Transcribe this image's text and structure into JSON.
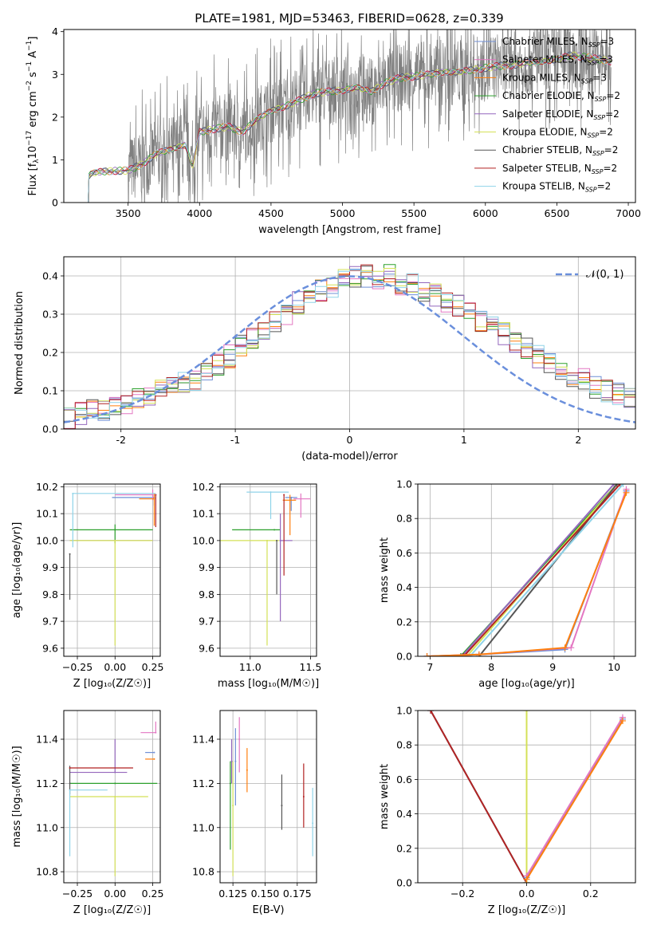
{
  "title": "PLATE=1981, MJD=53463, FIBERID=0628, z=0.339",
  "colors": {
    "Chabrier MILES": "#6f8fd6",
    "Salpeter MILES": "#e377c2",
    "Kroupa MILES": "#ff7f0e",
    "Chabrier ELODIE": "#2ca02c",
    "Salpeter ELODIE": "#9467bd",
    "Kroupa ELODIE": "#d4e157",
    "Chabrier STELIB": "#555555",
    "Salpeter STELIB": "#b22222",
    "Kroupa STELIB": "#8fd3e8",
    "data": "#808080",
    "normal": "#6a8fdc",
    "grid": "#b0b0b0"
  },
  "chart_data": [
    {
      "id": "spectrum",
      "type": "line",
      "title": "PLATE=1981, MJD=53463, FIBERID=0628, z=0.339",
      "xlabel": "wavelength [Angstrom, rest frame]",
      "ylabel_parts": [
        "Flux [f",
        "λ",
        "10",
        "−17",
        " erg cm",
        "−2",
        " s",
        "−1",
        " A",
        "−1",
        "]"
      ],
      "xlim": [
        3050,
        7050
      ],
      "ylim": [
        0,
        4.05
      ],
      "xticks": [
        3500,
        4000,
        4500,
        5000,
        5500,
        6000,
        6500,
        7000
      ],
      "yticks": [
        0,
        1,
        2,
        3,
        4
      ],
      "x_range_data": [
        3220,
        6880
      ],
      "model_continuum": [
        [
          3220,
          0.58
        ],
        [
          3240,
          0.68
        ],
        [
          3300,
          0.72
        ],
        [
          3400,
          0.74
        ],
        [
          3500,
          0.75
        ],
        [
          3600,
          0.9
        ],
        [
          3700,
          1.15
        ],
        [
          3800,
          1.25
        ],
        [
          3900,
          1.35
        ],
        [
          3950,
          0.85
        ],
        [
          4000,
          1.65
        ],
        [
          4100,
          1.72
        ],
        [
          4200,
          1.78
        ],
        [
          4300,
          1.65
        ],
        [
          4400,
          1.95
        ],
        [
          4500,
          2.15
        ],
        [
          4600,
          2.25
        ],
        [
          4700,
          2.4
        ],
        [
          4800,
          2.55
        ],
        [
          4900,
          2.6
        ],
        [
          5000,
          2.62
        ],
        [
          5100,
          2.7
        ],
        [
          5200,
          2.6
        ],
        [
          5300,
          2.8
        ],
        [
          5400,
          2.92
        ],
        [
          5500,
          2.95
        ],
        [
          5600,
          3.0
        ],
        [
          5700,
          3.05
        ],
        [
          5800,
          3.05
        ],
        [
          5900,
          3.1
        ],
        [
          6000,
          3.15
        ],
        [
          6100,
          3.2
        ],
        [
          6200,
          3.22
        ],
        [
          6300,
          3.28
        ],
        [
          6400,
          3.3
        ],
        [
          6500,
          3.35
        ],
        [
          6600,
          3.45
        ],
        [
          6700,
          3.4
        ],
        [
          6800,
          3.35
        ],
        [
          6880,
          3.3
        ]
      ],
      "legend": [
        {
          "label": "Chabrier MILES, N",
          "sub": "SSP",
          "count": "=3",
          "key": "Chabrier MILES"
        },
        {
          "label": "Salpeter MILES, N",
          "sub": "SSP",
          "count": "=3",
          "key": "Salpeter MILES"
        },
        {
          "label": "Kroupa MILES, N",
          "sub": "SSP",
          "count": "=3",
          "key": "Kroupa MILES"
        },
        {
          "label": "Chabrier ELODIE, N",
          "sub": "SSP",
          "count": "=2",
          "key": "Chabrier ELODIE"
        },
        {
          "label": "Salpeter ELODIE, N",
          "sub": "SSP",
          "count": "=2",
          "key": "Salpeter ELODIE"
        },
        {
          "label": "Kroupa ELODIE, N",
          "sub": "SSP",
          "count": "=2",
          "key": "Kroupa ELODIE"
        },
        {
          "label": "Chabrier STELIB, N",
          "sub": "SSP",
          "count": "=2",
          "key": "Chabrier STELIB"
        },
        {
          "label": "Salpeter STELIB, N",
          "sub": "SSP",
          "count": "=2",
          "key": "Salpeter STELIB"
        },
        {
          "label": "Kroupa STELIB, N",
          "sub": "SSP",
          "count": "=2",
          "key": "Kroupa STELIB"
        }
      ]
    },
    {
      "id": "residuals",
      "type": "line",
      "xlabel": "(data-model)/error",
      "ylabel": "Normed distribution",
      "xlim": [
        -2.5,
        2.5
      ],
      "ylim": [
        0,
        0.45
      ],
      "xticks": [
        -2,
        -1,
        0,
        1,
        2
      ],
      "yticks": [
        0.0,
        0.1,
        0.2,
        0.3,
        0.4
      ],
      "bin_width": 0.1,
      "base_hist": [
        0.03,
        0.04,
        0.05,
        0.05,
        0.06,
        0.07,
        0.08,
        0.08,
        0.1,
        0.11,
        0.12,
        0.13,
        0.15,
        0.17,
        0.19,
        0.22,
        0.24,
        0.26,
        0.28,
        0.3,
        0.33,
        0.34,
        0.36,
        0.37,
        0.39,
        0.4,
        0.4,
        0.39,
        0.4,
        0.37,
        0.38,
        0.36,
        0.35,
        0.33,
        0.32,
        0.3,
        0.28,
        0.27,
        0.25,
        0.23,
        0.21,
        0.19,
        0.17,
        0.15,
        0.14,
        0.13,
        0.11,
        0.1,
        0.09,
        0.08,
        0.07,
        0.06,
        0.05
      ],
      "normal_label": "𝒩(0, 1)",
      "series_keys": [
        "Chabrier MILES",
        "Salpeter MILES",
        "Kroupa MILES",
        "Chabrier ELODIE",
        "Salpeter ELODIE",
        "Kroupa ELODIE",
        "Chabrier STELIB",
        "Salpeter STELIB",
        "Kroupa STELIB"
      ]
    },
    {
      "id": "age_vs_Z",
      "type": "scatter",
      "xlabel": "Z [log₁₀(Z/Z☉)]",
      "ylabel": "age  [log₁₀(age/yr)]",
      "xlim": [
        -0.34,
        0.3
      ],
      "ylim": [
        9.57,
        10.21
      ],
      "xticks": [
        -0.25,
        0.0,
        0.25
      ],
      "xticklabels": [
        "−0.25",
        "0.00",
        "0.25"
      ],
      "yticks": [
        9.6,
        9.7,
        9.8,
        9.9,
        10.0,
        10.1,
        10.2
      ],
      "points": [
        {
          "key": "Chabrier MILES",
          "x": 0.26,
          "y": 10.16,
          "xerr": [
            0.28,
            0.0
          ],
          "yerr": [
            0.03,
            0.01
          ]
        },
        {
          "key": "Salpeter MILES",
          "x": 0.25,
          "y": 10.17,
          "xerr": [
            0.25,
            0.0
          ],
          "yerr": [
            0.02,
            0.02
          ]
        },
        {
          "key": "Kroupa MILES",
          "x": 0.26,
          "y": 10.155,
          "xerr": [
            0.1,
            0.0
          ],
          "yerr": [
            0.1,
            0.02
          ]
        },
        {
          "key": "Chabrier ELODIE",
          "x": 0.0,
          "y": 10.04,
          "xerr": [
            0.3,
            0.25
          ],
          "yerr": [
            0.05,
            0.02
          ]
        },
        {
          "key": "Salpeter ELODIE",
          "x": 0.0,
          "y": 10.0,
          "xerr": [
            0.3,
            0.25
          ],
          "yerr": [
            0.0,
            0.0
          ]
        },
        {
          "key": "Kroupa ELODIE",
          "x": 0.0,
          "y": 10.0,
          "xerr": [
            0.3,
            0.25
          ],
          "yerr": [
            0.39,
            0.0
          ]
        },
        {
          "key": "Chabrier STELIB",
          "x": -0.3,
          "y": 9.95,
          "xerr": [
            0.0,
            0.0
          ],
          "yerr": [
            0.17,
            0.0
          ]
        },
        {
          "key": "Salpeter STELIB",
          "x": 0.27,
          "y": 10.17,
          "xerr": [
            0.0,
            0.0
          ],
          "yerr": [
            0.12,
            0.0
          ]
        },
        {
          "key": "Kroupa STELIB",
          "x": -0.28,
          "y": 10.175,
          "xerr": [
            0.0,
            0.55
          ],
          "yerr": [
            0.2,
            0.0
          ]
        }
      ]
    },
    {
      "id": "age_vs_mass",
      "type": "scatter",
      "xlabel": "mass [log₁₀(M/M☉)]",
      "ylabel": "",
      "xlim": [
        10.75,
        11.55
      ],
      "ylim": [
        9.57,
        10.21
      ],
      "xticks": [
        11.0,
        11.5
      ],
      "xticklabels": [
        "11.0",
        "11.5"
      ],
      "yticks": [
        9.6,
        9.7,
        9.8,
        9.9,
        10.0,
        10.1,
        10.2
      ],
      "points": [
        {
          "key": "Chabrier MILES",
          "x": 11.34,
          "y": 10.16,
          "xerr": [
            0.05,
            0.05
          ],
          "yerr": [
            0.05,
            0.0
          ]
        },
        {
          "key": "Salpeter MILES",
          "x": 11.42,
          "y": 10.155,
          "xerr": [
            0.06,
            0.08
          ],
          "yerr": [
            0.07,
            0.02
          ]
        },
        {
          "key": "Kroupa MILES",
          "x": 11.33,
          "y": 10.15,
          "xerr": [
            0.06,
            0.05
          ],
          "yerr": [
            0.13,
            0.02
          ]
        },
        {
          "key": "Chabrier ELODIE",
          "x": 11.2,
          "y": 10.04,
          "xerr": [
            0.35,
            0.05
          ],
          "yerr": [
            0.0,
            0.0
          ]
        },
        {
          "key": "Salpeter ELODIE",
          "x": 11.25,
          "y": 10.0,
          "xerr": [
            0.0,
            0.1
          ],
          "yerr": [
            0.3,
            0.1
          ]
        },
        {
          "key": "Kroupa ELODIE",
          "x": 11.14,
          "y": 10.0,
          "xerr": [
            0.4,
            0.1
          ],
          "yerr": [
            0.39,
            0.0
          ]
        },
        {
          "key": "Chabrier STELIB",
          "x": 11.22,
          "y": 10.0,
          "xerr": [
            0.0,
            0.0
          ],
          "yerr": [
            0.2,
            0.0
          ]
        },
        {
          "key": "Salpeter STELIB",
          "x": 11.28,
          "y": 10.17,
          "xerr": [
            0.0,
            0.0
          ],
          "yerr": [
            0.3,
            0.0
          ]
        },
        {
          "key": "Kroupa STELIB",
          "x": 11.17,
          "y": 10.18,
          "xerr": [
            0.2,
            0.15
          ],
          "yerr": [
            0.1,
            0.0
          ]
        }
      ]
    },
    {
      "id": "cum_age",
      "type": "line",
      "xlabel": "age  [log₁₀(age/yr)]",
      "ylabel": "mass weight",
      "xlim": [
        6.8,
        10.35
      ],
      "ylim": [
        0,
        1.0
      ],
      "xticks": [
        7,
        8,
        9,
        10
      ],
      "yticks": [
        0.0,
        0.2,
        0.4,
        0.6,
        0.8,
        1.0
      ],
      "series": [
        {
          "key": "Chabrier ELODIE",
          "x": [
            7.5,
            10.05
          ],
          "y": [
            0.0,
            1.0
          ]
        },
        {
          "key": "Salpeter ELODIE",
          "x": [
            7.52,
            10.0
          ],
          "y": [
            0.0,
            1.0
          ]
        },
        {
          "key": "Kroupa ELODIE",
          "x": [
            7.6,
            10.05
          ],
          "y": [
            0.0,
            1.0
          ]
        },
        {
          "key": "Chabrier STELIB",
          "x": [
            7.8,
            10.05
          ],
          "y": [
            0.0,
            1.0
          ]
        },
        {
          "key": "Salpeter STELIB",
          "x": [
            7.55,
            10.1
          ],
          "y": [
            0.0,
            1.0
          ]
        },
        {
          "key": "Kroupa STELIB",
          "x": [
            7.65,
            10.15
          ],
          "y": [
            0.0,
            1.0
          ]
        },
        {
          "key": "Chabrier MILES",
          "x": [
            6.95,
            7.8,
            9.2,
            10.2
          ],
          "y": [
            0.0,
            0.01,
            0.04,
            0.96
          ]
        },
        {
          "key": "Salpeter MILES",
          "x": [
            6.95,
            7.8,
            9.3,
            10.2
          ],
          "y": [
            0.0,
            0.01,
            0.05,
            0.97
          ]
        },
        {
          "key": "Kroupa MILES",
          "x": [
            6.95,
            7.8,
            9.2,
            10.2
          ],
          "y": [
            0.0,
            0.01,
            0.05,
            0.95
          ]
        }
      ]
    },
    {
      "id": "mass_vs_Z",
      "type": "scatter",
      "xlabel": "Z [log₁₀(Z/Z☉)]",
      "ylabel": "mass [log₁₀(M/M☉)]",
      "xlim": [
        -0.34,
        0.3
      ],
      "ylim": [
        10.75,
        11.53
      ],
      "xticks": [
        -0.25,
        0.0,
        0.25
      ],
      "xticklabels": [
        "−0.25",
        "0.00",
        "0.25"
      ],
      "yticks": [
        10.8,
        11.0,
        11.2,
        11.4
      ],
      "points": [
        {
          "key": "Chabrier MILES",
          "x": 0.26,
          "y": 11.34,
          "xerr": [
            0.06,
            0.0
          ],
          "yerr": [
            0.0,
            0.0
          ]
        },
        {
          "key": "Salpeter MILES",
          "x": 0.27,
          "y": 11.43,
          "xerr": [
            0.1,
            0.0
          ],
          "yerr": [
            0.0,
            0.05
          ]
        },
        {
          "key": "Kroupa MILES",
          "x": 0.26,
          "y": 11.31,
          "xerr": [
            0.06,
            0.0
          ],
          "yerr": [
            0.0,
            0.0
          ]
        },
        {
          "key": "Chabrier ELODIE",
          "x": 0.0,
          "y": 11.2,
          "xerr": [
            0.3,
            0.28
          ],
          "yerr": [
            0.0,
            0.0
          ]
        },
        {
          "key": "Salpeter ELODIE",
          "x": 0.0,
          "y": 11.25,
          "xerr": [
            0.3,
            0.08
          ],
          "yerr": [
            0.0,
            0.15
          ]
        },
        {
          "key": "Kroupa ELODIE",
          "x": 0.0,
          "y": 11.14,
          "xerr": [
            0.3,
            0.22
          ],
          "yerr": [
            0.36,
            0.0
          ]
        },
        {
          "key": "Chabrier STELIB",
          "x": -0.3,
          "y": 11.2,
          "xerr": [
            0.0,
            0.0
          ],
          "yerr": [
            0.05,
            0.08
          ]
        },
        {
          "key": "Salpeter STELIB",
          "x": -0.3,
          "y": 11.27,
          "xerr": [
            0.0,
            0.42
          ],
          "yerr": [
            0.0,
            0.0
          ]
        },
        {
          "key": "Kroupa STELIB",
          "x": -0.3,
          "y": 11.17,
          "xerr": [
            0.0,
            0.25
          ],
          "yerr": [
            0.3,
            0.0
          ]
        }
      ]
    },
    {
      "id": "mass_vs_ebv",
      "type": "scatter",
      "xlabel": "E(B-V)",
      "ylabel": "",
      "xlim": [
        0.115,
        0.19
      ],
      "ylim": [
        10.75,
        11.53
      ],
      "xticks": [
        0.125,
        0.15,
        0.175
      ],
      "xticklabels": [
        "0.125",
        "0.150",
        "0.175"
      ],
      "yticks": [
        10.8,
        11.0,
        11.2,
        11.4
      ],
      "points": [
        {
          "key": "Chabrier MILES",
          "x": 0.127,
          "y": 11.3,
          "yerr": [
            0.2,
            0.15
          ]
        },
        {
          "key": "Salpeter MILES",
          "x": 0.13,
          "y": 11.4,
          "yerr": [
            0.15,
            0.1
          ]
        },
        {
          "key": "Kroupa MILES",
          "x": 0.136,
          "y": 11.26,
          "yerr": [
            0.1,
            0.1
          ]
        },
        {
          "key": "Chabrier ELODIE",
          "x": 0.123,
          "y": 11.2,
          "yerr": [
            0.3,
            0.1
          ]
        },
        {
          "key": "Salpeter ELODIE",
          "x": 0.124,
          "y": 11.3,
          "yerr": [
            0.1,
            0.1
          ]
        },
        {
          "key": "Kroupa ELODIE",
          "x": 0.125,
          "y": 11.1,
          "yerr": [
            0.32,
            0.2
          ]
        },
        {
          "key": "Chabrier STELIB",
          "x": 0.163,
          "y": 11.1,
          "yerr": [
            0.11,
            0.14
          ]
        },
        {
          "key": "Salpeter STELIB",
          "x": 0.18,
          "y": 11.14,
          "yerr": [
            0.14,
            0.15
          ]
        },
        {
          "key": "Kroupa STELIB",
          "x": 0.187,
          "y": 11.02,
          "yerr": [
            0.15,
            0.16
          ]
        }
      ]
    },
    {
      "id": "cum_Z",
      "type": "line",
      "xlabel": "Z [log₁₀(Z/Z☉)]",
      "ylabel": "mass weight",
      "xlim": [
        -0.34,
        0.34
      ],
      "ylim": [
        0,
        1.0
      ],
      "xticks": [
        -0.2,
        0.0,
        0.2
      ],
      "xticklabels": [
        "−0.2",
        "0.0",
        "0.2"
      ],
      "yticks": [
        0.0,
        0.2,
        0.4,
        0.6,
        0.8,
        1.0
      ],
      "series": [
        {
          "key": "Chabrier STELIB",
          "x": [
            -0.3,
            0.0
          ],
          "y": [
            1.0,
            0.0
          ]
        },
        {
          "key": "Kroupa STELIB",
          "x": [
            -0.3,
            0.0
          ],
          "y": [
            1.0,
            0.0
          ]
        },
        {
          "key": "Salpeter STELIB",
          "x": [
            -0.3,
            0.0
          ],
          "y": [
            1.0,
            0.0
          ]
        },
        {
          "key": "Kroupa ELODIE",
          "x": [
            0.0,
            0.0
          ],
          "y": [
            0.0,
            1.0
          ]
        },
        {
          "key": "Chabrier MILES",
          "x": [
            0.0,
            0.3
          ],
          "y": [
            0.03,
            0.95
          ]
        },
        {
          "key": "Salpeter MILES",
          "x": [
            0.0,
            0.3
          ],
          "y": [
            0.04,
            0.96
          ]
        },
        {
          "key": "Kroupa MILES",
          "x": [
            0.0,
            0.3
          ],
          "y": [
            0.02,
            0.94
          ]
        }
      ]
    }
  ]
}
